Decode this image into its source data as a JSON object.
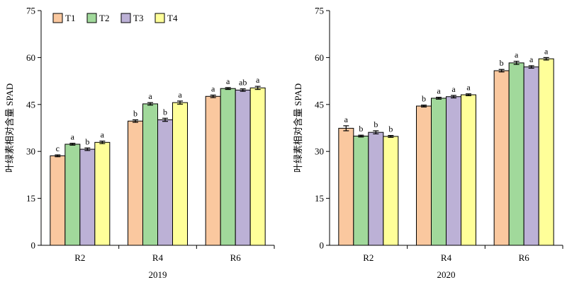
{
  "colors": {
    "T1": "#fac89f",
    "T2": "#a1d99b",
    "T3": "#bcb1d6",
    "T4": "#ffff99"
  },
  "legend": {
    "placement": "top-left",
    "items": [
      "T1",
      "T2",
      "T3",
      "T4"
    ]
  },
  "chart_data": [
    {
      "type": "bar",
      "title": "",
      "xlabel": "2019",
      "ylabel": "叶绿素相对含量 SPAD",
      "ylim": [
        0,
        75
      ],
      "yticks": [
        0,
        15,
        30,
        45,
        60,
        75
      ],
      "grid": false,
      "categories": [
        "R2",
        "R4",
        "R6"
      ],
      "series": [
        {
          "name": "T1",
          "values": [
            28.6,
            39.7,
            47.6
          ],
          "errors": [
            0.3,
            0.4,
            0.4
          ],
          "labels": [
            "c",
            "b",
            "a"
          ]
        },
        {
          "name": "T2",
          "values": [
            32.3,
            45.2,
            50.1
          ],
          "errors": [
            0.3,
            0.4,
            0.3
          ],
          "labels": [
            "a",
            "a",
            "a"
          ]
        },
        {
          "name": "T3",
          "values": [
            30.7,
            40.1,
            49.6
          ],
          "errors": [
            0.4,
            0.5,
            0.4
          ],
          "labels": [
            "b",
            "b",
            "ab"
          ]
        },
        {
          "name": "T4",
          "values": [
            32.9,
            45.6,
            50.3
          ],
          "errors": [
            0.4,
            0.5,
            0.5
          ],
          "labels": [
            "a",
            "a",
            "a"
          ]
        }
      ]
    },
    {
      "type": "bar",
      "title": "",
      "xlabel": "2020",
      "ylabel": "叶绿素相对含量 SPAD",
      "ylim": [
        0,
        75
      ],
      "yticks": [
        0,
        15,
        30,
        45,
        60,
        75
      ],
      "grid": false,
      "categories": [
        "R2",
        "R4",
        "R6"
      ],
      "series": [
        {
          "name": "T1",
          "values": [
            37.4,
            44.5,
            55.8
          ],
          "errors": [
            0.8,
            0.3,
            0.4
          ],
          "labels": [
            "a",
            "b",
            "b"
          ]
        },
        {
          "name": "T2",
          "values": [
            34.9,
            47.0,
            58.3
          ],
          "errors": [
            0.3,
            0.3,
            0.5
          ],
          "labels": [
            "b",
            "a",
            "a"
          ]
        },
        {
          "name": "T3",
          "values": [
            36.1,
            47.5,
            57.0
          ],
          "errors": [
            0.5,
            0.4,
            0.4
          ],
          "labels": [
            "b",
            "a",
            "a"
          ]
        },
        {
          "name": "T4",
          "values": [
            34.8,
            48.1,
            59.6
          ],
          "errors": [
            0.3,
            0.3,
            0.4
          ],
          "labels": [
            "b",
            "a",
            "a"
          ]
        }
      ]
    }
  ]
}
